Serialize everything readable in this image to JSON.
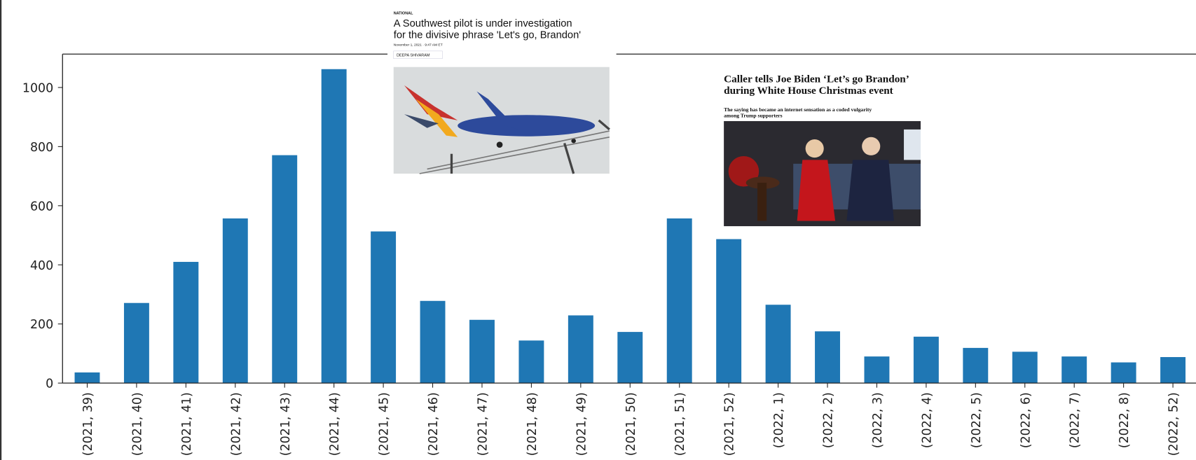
{
  "chart_data": {
    "type": "bar",
    "categories": [
      "(2021, 39)",
      "(2021, 40)",
      "(2021, 41)",
      "(2021, 42)",
      "(2021, 43)",
      "(2021, 44)",
      "(2021, 45)",
      "(2021, 46)",
      "(2021, 47)",
      "(2021, 48)",
      "(2021, 49)",
      "(2021, 50)",
      "(2021, 51)",
      "(2021, 52)",
      "(2022, 1)",
      "(2022, 2)",
      "(2022, 3)",
      "(2022, 4)",
      "(2022, 5)",
      "(2022, 6)",
      "(2022, 7)",
      "(2022, 8)",
      "(2022, 52)"
    ],
    "values": [
      36,
      271,
      410,
      557,
      771,
      1062,
      513,
      278,
      214,
      144,
      229,
      173,
      557,
      487,
      265,
      175,
      90,
      157,
      119,
      106,
      90,
      70,
      88
    ],
    "color": "#1f77b4",
    "ylim": [
      0,
      1113
    ],
    "yticks": [
      0,
      200,
      400,
      600,
      800,
      1000
    ]
  },
  "article_1": {
    "section": "NATIONAL",
    "headline": [
      "A Southwest pilot is under investigation",
      "for the divisive phrase 'Let's go, Brandon'"
    ],
    "date": "November 1, 2021 · 9:47 AM ET",
    "byline": "DEEPA SHIVARAM"
  },
  "article_2": {
    "headline": [
      "Caller tells Joe Biden ‘Let’s go Brandon’",
      "during White House Christmas event"
    ],
    "subhead": [
      "The saying has became an internet sensation as a coded vulgarity",
      "among Trump supporters"
    ]
  }
}
